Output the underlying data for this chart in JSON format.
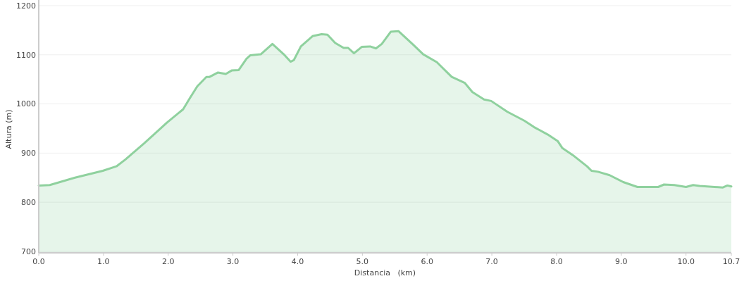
{
  "chart_data": {
    "type": "area",
    "xlabel": "Distancia   (km)",
    "ylabel": "Altura (m)",
    "xlim": [
      0,
      10.7
    ],
    "xticks": [
      {
        "value": 0,
        "label": "0.0"
      },
      {
        "value": 1,
        "label": "1.0"
      },
      {
        "value": 2,
        "label": "2.0"
      },
      {
        "value": 3,
        "label": "3.0"
      },
      {
        "value": 4,
        "label": "4.0"
      },
      {
        "value": 5,
        "label": "5.0"
      },
      {
        "value": 6,
        "label": "6.0"
      },
      {
        "value": 7,
        "label": "7.0"
      },
      {
        "value": 8,
        "label": "8.0"
      },
      {
        "value": 9,
        "label": "9.0"
      },
      {
        "value": 10,
        "label": "10.0"
      },
      10.7
    ],
    "ylim": [
      697,
      1200
    ],
    "yticks": [
      700,
      800,
      900,
      1000,
      1100,
      1200
    ],
    "grid": "y",
    "marker": "none",
    "line_style": "solid",
    "series": [
      {
        "color": "#8fd19e",
        "x": [
          0,
          0.17,
          0.56,
          0.99,
          1.2,
          1.34,
          1.63,
          1.84,
          1.98,
          2.23,
          2.34,
          2.45,
          2.59,
          2.64,
          2.77,
          2.89,
          2.98,
          3.09,
          3.21,
          3.27,
          3.43,
          3.61,
          3.8,
          3.89,
          3.94,
          4.05,
          4.23,
          4.37,
          4.46,
          4.58,
          4.71,
          4.78,
          4.87,
          4.99,
          5.12,
          5.21,
          5.3,
          5.44,
          5.56,
          5.79,
          5.94,
          6.15,
          6.38,
          6.58,
          6.7,
          6.88,
          6.99,
          7.24,
          7.5,
          7.65,
          7.86,
          8.02,
          8.09,
          8.25,
          8.47,
          8.54,
          8.64,
          8.82,
          9.03,
          9.25,
          9.57,
          9.66,
          9.82,
          10,
          10.11,
          10.21,
          10.57,
          10.64,
          10.7
        ],
        "values": [
          834,
          835,
          850,
          864,
          873,
          887,
          920,
          945,
          962,
          989,
          1013,
          1036,
          1055,
          1055,
          1064,
          1061,
          1068,
          1069,
          1092,
          1099,
          1101,
          1122,
          1099,
          1086,
          1089,
          1117,
          1138,
          1142,
          1141,
          1124,
          1114,
          1114,
          1103,
          1116,
          1117,
          1113,
          1122,
          1147,
          1148,
          1120,
          1101,
          1085,
          1055,
          1043,
          1024,
          1009,
          1006,
          984,
          966,
          953,
          938,
          924,
          910,
          896,
          873,
          864,
          862,
          855,
          841,
          831,
          831,
          836,
          835,
          831,
          835,
          833,
          830,
          834,
          832
        ]
      }
    ]
  }
}
